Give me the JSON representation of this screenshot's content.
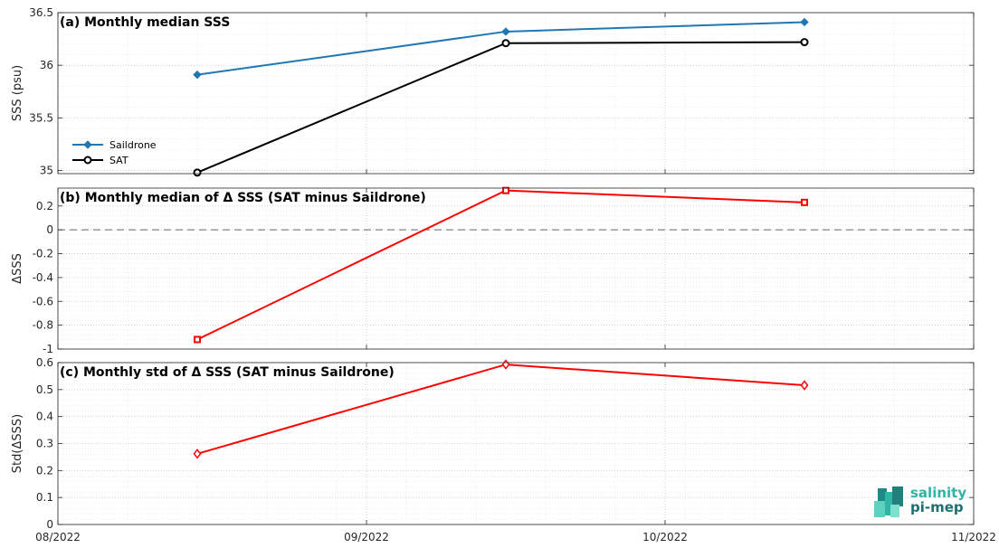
{
  "logo": {
    "line1": "salinity",
    "line2": "pi-mep"
  },
  "chart_data": [
    {
      "type": "line",
      "title": "(a) Monthly median SSS",
      "ylabel": "SSS (psu)",
      "ylim": [
        34.97,
        36.5
      ],
      "yticks": [
        "35",
        "35.5",
        "36",
        "36.5"
      ],
      "ytick_values": [
        35,
        35.5,
        36,
        36.5
      ],
      "grid": true,
      "legend": "middle-left",
      "x": [
        "2022-08-15",
        "2022-09-15",
        "2022-10-15"
      ],
      "series": [
        {
          "name": "Saildrone",
          "values": [
            35.91,
            36.32,
            36.41
          ],
          "color": "#1f77b4",
          "marker": "diamond"
        },
        {
          "name": "SAT",
          "values": [
            34.98,
            36.21,
            36.22
          ],
          "color": "#000000",
          "marker": "circle"
        }
      ]
    },
    {
      "type": "line",
      "title": "(b) Monthly median of Δ SSS (SAT minus Saildrone)",
      "ylabel": "ΔSSS",
      "ylim": [
        -1,
        0.35
      ],
      "yticks": [
        "-1",
        "-0.8",
        "-0.6",
        "-0.4",
        "-0.2",
        "0",
        "0.2"
      ],
      "ytick_values": [
        -1,
        -0.8,
        -0.6,
        -0.4,
        -0.2,
        0,
        0.2
      ],
      "grid": true,
      "reference_line": 0,
      "x": [
        "2022-08-15",
        "2022-09-15",
        "2022-10-15"
      ],
      "series": [
        {
          "values": [
            -0.92,
            0.33,
            0.23
          ],
          "color": "#ff0000",
          "marker": "square"
        }
      ]
    },
    {
      "type": "line",
      "title": "(c) Monthly std of Δ SSS (SAT minus Saildrone)",
      "ylabel": "Std(ΔSSS)",
      "ylim": [
        0,
        0.6
      ],
      "yticks": [
        "0",
        "0.1",
        "0.2",
        "0.3",
        "0.4",
        "0.5",
        "0.6"
      ],
      "ytick_values": [
        0,
        0.1,
        0.2,
        0.3,
        0.4,
        0.5,
        0.6
      ],
      "grid": true,
      "xlim": [
        "2022-08-01",
        "2022-11-01"
      ],
      "xticks": [
        "08/2022",
        "09/2022",
        "10/2022",
        "11/2022"
      ],
      "x": [
        "2022-08-15",
        "2022-09-15",
        "2022-10-15"
      ],
      "series": [
        {
          "values": [
            0.262,
            0.593,
            0.516
          ],
          "color": "#ff0000",
          "marker": "diamond-open"
        }
      ]
    }
  ]
}
